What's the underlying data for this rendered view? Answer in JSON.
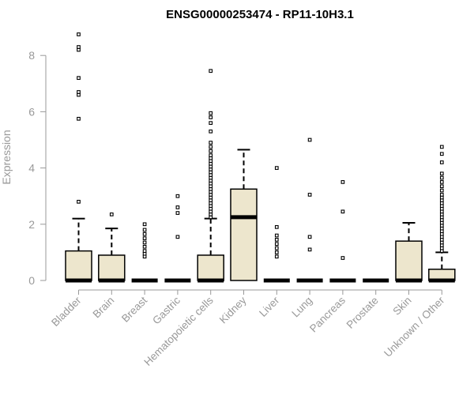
{
  "chart_data": {
    "type": "box",
    "title": "ENSG00000253474 - RP11-10H3.1",
    "xlabel": "",
    "ylabel": "Expression",
    "ylim": [
      0,
      9
    ],
    "yticks": [
      0,
      2,
      4,
      6,
      8
    ],
    "grid": false,
    "colors": {
      "box_fill": "#ede6cd",
      "box_stroke": "#000000",
      "axis": "#999999",
      "title": "#000000"
    },
    "categories": [
      "Bladder",
      "Brain",
      "Breast",
      "Gastric",
      "Hematopoietic cells",
      "Kidney",
      "Liver",
      "Lung",
      "Pancreas",
      "Prostate",
      "Skin",
      "Unknown / Other"
    ],
    "boxes": [
      {
        "category": "Bladder",
        "q1": 0,
        "median": 0,
        "q3": 1.05,
        "whisker_low": 0,
        "whisker_high": 2.2,
        "outliers": [
          2.8,
          5.75,
          6.6,
          6.7,
          7.2,
          8.2,
          8.3,
          8.75
        ]
      },
      {
        "category": "Brain",
        "q1": 0,
        "median": 0,
        "q3": 0.9,
        "whisker_low": 0,
        "whisker_high": 1.85,
        "outliers": [
          2.35
        ]
      },
      {
        "category": "Breast",
        "q1": 0,
        "median": 0,
        "q3": 0,
        "whisker_low": 0,
        "whisker_high": 0,
        "outliers": [
          0.85,
          0.95,
          1.05,
          1.2,
          1.35,
          1.5,
          1.65,
          1.8,
          2.0
        ]
      },
      {
        "category": "Gastric",
        "q1": 0,
        "median": 0,
        "q3": 0,
        "whisker_low": 0,
        "whisker_high": 0,
        "outliers": [
          1.55,
          2.4,
          2.6,
          3.0
        ]
      },
      {
        "category": "Hematopoietic cells",
        "q1": 0,
        "median": 0,
        "q3": 0.9,
        "whisker_low": 0,
        "whisker_high": 2.2,
        "outliers": [
          2.25,
          2.35,
          2.45,
          2.55,
          2.65,
          2.75,
          2.85,
          2.95,
          3.05,
          3.15,
          3.25,
          3.35,
          3.45,
          3.55,
          3.65,
          3.75,
          3.85,
          3.95,
          4.05,
          4.15,
          4.25,
          4.35,
          4.45,
          4.6,
          4.75,
          4.9,
          5.3,
          5.6,
          5.8,
          5.95,
          7.45
        ]
      },
      {
        "category": "Kidney",
        "q1": 0,
        "median": 2.25,
        "q3": 3.25,
        "whisker_low": 0,
        "whisker_high": 4.65,
        "outliers": []
      },
      {
        "category": "Liver",
        "q1": 0,
        "median": 0,
        "q3": 0,
        "whisker_low": 0,
        "whisker_high": 0,
        "outliers": [
          0.85,
          1.0,
          1.15,
          1.3,
          1.45,
          1.6,
          1.9,
          4.0
        ]
      },
      {
        "category": "Lung",
        "q1": 0,
        "median": 0,
        "q3": 0,
        "whisker_low": 0,
        "whisker_high": 0,
        "outliers": [
          1.1,
          1.55,
          3.05,
          5.0
        ]
      },
      {
        "category": "Pancreas",
        "q1": 0,
        "median": 0,
        "q3": 0,
        "whisker_low": 0,
        "whisker_high": 0,
        "outliers": [
          0.8,
          2.45,
          3.5
        ]
      },
      {
        "category": "Prostate",
        "q1": 0,
        "median": 0,
        "q3": 0,
        "whisker_low": 0,
        "whisker_high": 0,
        "outliers": []
      },
      {
        "category": "Skin",
        "q1": 0,
        "median": 0,
        "q3": 1.4,
        "whisker_low": 0,
        "whisker_high": 2.05,
        "outliers": []
      },
      {
        "category": "Unknown / Other",
        "q1": 0,
        "median": 0,
        "q3": 0.4,
        "whisker_low": 0,
        "whisker_high": 1.0,
        "outliers": [
          1.05,
          1.15,
          1.25,
          1.35,
          1.45,
          1.55,
          1.65,
          1.75,
          1.85,
          1.95,
          2.05,
          2.15,
          2.25,
          2.35,
          2.45,
          2.55,
          2.65,
          2.75,
          2.85,
          2.95,
          3.05,
          3.2,
          3.35,
          3.5,
          3.65,
          3.8,
          4.2,
          4.5,
          4.75
        ]
      }
    ]
  }
}
